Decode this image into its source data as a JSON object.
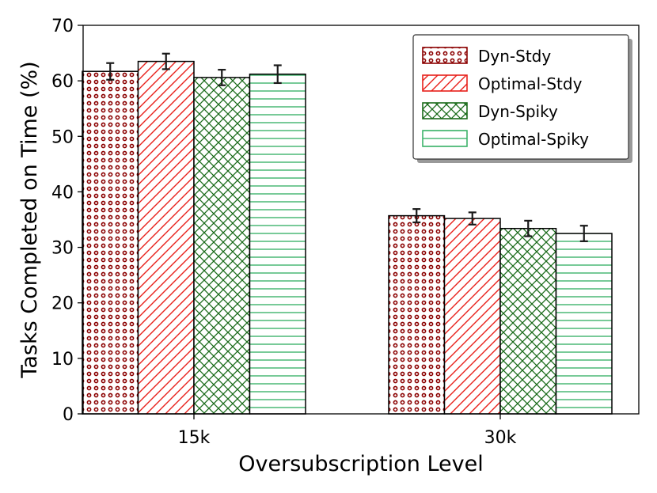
{
  "chart_data": {
    "type": "bar",
    "title": "",
    "xlabel": "Oversubscription Level",
    "ylabel": "Tasks Completed on Time (%)",
    "categories": [
      "15k",
      "30k"
    ],
    "ylim": [
      0,
      70
    ],
    "yticks": [
      0,
      10,
      20,
      30,
      40,
      50,
      60,
      70
    ],
    "grid": false,
    "legend_position": "top-right",
    "series": [
      {
        "name": "Dyn-Stdy",
        "values": [
          61.7,
          35.7
        ],
        "errors": [
          1.5,
          1.2
        ],
        "color": "#8b0000",
        "hatch": "dots"
      },
      {
        "name": "Optimal-Stdy",
        "values": [
          63.5,
          35.2
        ],
        "errors": [
          1.4,
          1.1
        ],
        "color": "#e8201a",
        "hatch": "diagonal"
      },
      {
        "name": "Dyn-Spiky",
        "values": [
          60.6,
          33.4
        ],
        "errors": [
          1.4,
          1.4
        ],
        "color": "#1a6b1a",
        "hatch": "crosshatch"
      },
      {
        "name": "Optimal-Spiky",
        "values": [
          61.2,
          32.5
        ],
        "errors": [
          1.6,
          1.4
        ],
        "color": "#3db36b",
        "hatch": "horizontal"
      }
    ]
  }
}
